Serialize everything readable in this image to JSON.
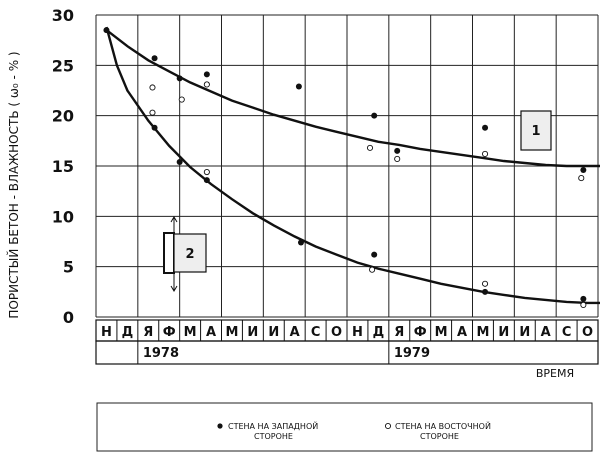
{
  "chart_data": {
    "type": "scatter",
    "ylabel": "ПОРИСТЫЙ БЕТОН - ВЛАЖНОСТЬ ( ω₀ - % )",
    "xlabel": "ВРЕМЯ",
    "ylim": [
      0,
      30
    ],
    "yticks": [
      "0",
      "5",
      "10",
      "15",
      "20",
      "25",
      "30"
    ],
    "grid": true,
    "months": [
      "Н",
      "Д",
      "Я",
      "Ф",
      "М",
      "А",
      "М",
      "И",
      "И",
      "А",
      "С",
      "О",
      "Н",
      "Д",
      "Я",
      "Ф",
      "М",
      "А",
      "М",
      "И",
      "И",
      "А",
      "С",
      "О"
    ],
    "years": [
      "1978",
      "1979"
    ],
    "series": [
      {
        "name": "СТЕНА НА ЗАПАДНОЙ СТОРОНЕ",
        "marker": "filled",
        "points": [
          {
            "x": 0.0,
            "y": 28.5
          },
          {
            "x": 2.3,
            "y": 25.7
          },
          {
            "x": 2.3,
            "y": 18.8
          },
          {
            "x": 3.5,
            "y": 23.7
          },
          {
            "x": 3.5,
            "y": 15.4
          },
          {
            "x": 4.8,
            "y": 24.1
          },
          {
            "x": 4.8,
            "y": 13.6
          },
          {
            "x": 9.2,
            "y": 22.9
          },
          {
            "x": 9.3,
            "y": 7.4
          },
          {
            "x": 12.8,
            "y": 20.0
          },
          {
            "x": 12.8,
            "y": 6.2
          },
          {
            "x": 13.9,
            "y": 16.5
          },
          {
            "x": 18.1,
            "y": 18.8
          },
          {
            "x": 18.1,
            "y": 2.5
          },
          {
            "x": 22.8,
            "y": 14.6
          },
          {
            "x": 22.8,
            "y": 1.8
          }
        ]
      },
      {
        "name": "СТЕНА НА ВОСТОЧНОЙ СТОРОНЕ",
        "marker": "open",
        "points": [
          {
            "x": 2.2,
            "y": 22.8
          },
          {
            "x": 2.2,
            "y": 20.3
          },
          {
            "x": 3.6,
            "y": 21.6
          },
          {
            "x": 4.8,
            "y": 23.1
          },
          {
            "x": 4.8,
            "y": 14.4
          },
          {
            "x": 12.6,
            "y": 16.8
          },
          {
            "x": 12.7,
            "y": 4.7
          },
          {
            "x": 13.9,
            "y": 15.7
          },
          {
            "x": 18.1,
            "y": 16.2
          },
          {
            "x": 18.1,
            "y": 3.3
          },
          {
            "x": 22.7,
            "y": 13.8
          },
          {
            "x": 22.8,
            "y": 1.2
          }
        ]
      }
    ],
    "curves": [
      {
        "label": "1",
        "points": [
          [
            0,
            28.5
          ],
          [
            1,
            26.9
          ],
          [
            2,
            25.5
          ],
          [
            3,
            24.4
          ],
          [
            4,
            23.3
          ],
          [
            5,
            22.4
          ],
          [
            6,
            21.5
          ],
          [
            7,
            20.8
          ],
          [
            8,
            20.1
          ],
          [
            9,
            19.5
          ],
          [
            10,
            18.9
          ],
          [
            11,
            18.4
          ],
          [
            12,
            17.9
          ],
          [
            13,
            17.4
          ],
          [
            14,
            17.1
          ],
          [
            15,
            16.7
          ],
          [
            16,
            16.4
          ],
          [
            17,
            16.1
          ],
          [
            18,
            15.8
          ],
          [
            19,
            15.5
          ],
          [
            20,
            15.3
          ],
          [
            21,
            15.1
          ],
          [
            22,
            15.0
          ],
          [
            23,
            15.0
          ],
          [
            24,
            15.0
          ]
        ]
      },
      {
        "label": "2",
        "points": [
          [
            0,
            28.8
          ],
          [
            0.5,
            25.0
          ],
          [
            1,
            22.5
          ],
          [
            2,
            19.5
          ],
          [
            3,
            17.0
          ],
          [
            4,
            14.9
          ],
          [
            5,
            13.2
          ],
          [
            6,
            11.7
          ],
          [
            7,
            10.3
          ],
          [
            8,
            9.1
          ],
          [
            9,
            8.0
          ],
          [
            10,
            7.0
          ],
          [
            11,
            6.2
          ],
          [
            12,
            5.4
          ],
          [
            13,
            4.8
          ],
          [
            14,
            4.3
          ],
          [
            15,
            3.8
          ],
          [
            16,
            3.3
          ],
          [
            17,
            2.9
          ],
          [
            18,
            2.5
          ],
          [
            19,
            2.2
          ],
          [
            20,
            1.9
          ],
          [
            21,
            1.7
          ],
          [
            22,
            1.5
          ],
          [
            23,
            1.4
          ],
          [
            24,
            1.4
          ]
        ]
      }
    ]
  },
  "legend": {
    "west_label_line1": "СТЕНА НА ЗАПАДНОЙ",
    "west_label_line2": "СТОРОНЕ",
    "east_label_line1": "СТЕНА НА ВОСТОЧНОЙ",
    "east_label_line2": "СТОРОНЕ"
  }
}
